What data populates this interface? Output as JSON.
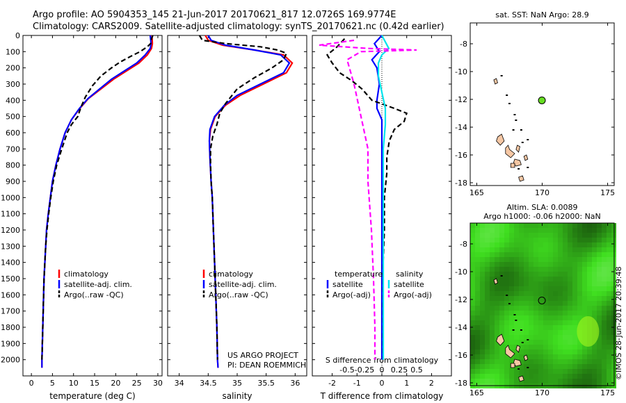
{
  "title": {
    "line1": "Argo profile: AO 5904353_145 21-Jun-2017 20170621_817 12.0726S 169.9774E",
    "line2": "Climatology: CARS2009. Satellite-adjusted climatology: synTS_20170621.nc (0.42d earlier)"
  },
  "chart_data": [
    {
      "type": "line",
      "name": "temperature-profile",
      "xlabel": "temperature (deg C)",
      "xlim": [
        -2,
        31
      ],
      "ylim": [
        2100,
        0
      ],
      "xticks": [
        0,
        5,
        10,
        15,
        20,
        25,
        30
      ],
      "yticks": [
        0,
        100,
        200,
        300,
        400,
        500,
        600,
        700,
        800,
        900,
        1000,
        1100,
        1200,
        1300,
        1400,
        1500,
        1600,
        1700,
        1800,
        1900,
        2000
      ],
      "legend": [
        "climatology",
        "satellite-adj. clim.",
        "Argo(..raw -QC)"
      ],
      "legend_placement": "lower-center",
      "series": [
        {
          "name": "climatology",
          "color": "#ff0000",
          "dash": "solid",
          "points": [
            [
              28.6,
              0
            ],
            [
              28.7,
              50
            ],
            [
              28.5,
              80
            ],
            [
              27.5,
              120
            ],
            [
              25.5,
              170
            ],
            [
              22.5,
              220
            ],
            [
              19.5,
              270
            ],
            [
              16.5,
              330
            ],
            [
              13.5,
              390
            ],
            [
              11.5,
              450
            ],
            [
              9.5,
              520
            ],
            [
              8.0,
              600
            ],
            [
              6.8,
              700
            ],
            [
              5.8,
              800
            ],
            [
              5.0,
              900
            ],
            [
              4.5,
              1000
            ],
            [
              4.0,
              1100
            ],
            [
              3.6,
              1200
            ],
            [
              3.4,
              1300
            ],
            [
              3.2,
              1400
            ],
            [
              3.0,
              1500
            ],
            [
              2.9,
              1600
            ],
            [
              2.8,
              1700
            ],
            [
              2.7,
              1800
            ],
            [
              2.6,
              1900
            ],
            [
              2.5,
              2000
            ],
            [
              2.5,
              2050
            ]
          ]
        },
        {
          "name": "satellite-adj. clim.",
          "color": "#0000ff",
          "dash": "solid",
          "points": [
            [
              28.2,
              0
            ],
            [
              28.4,
              50
            ],
            [
              28.2,
              80
            ],
            [
              27.0,
              120
            ],
            [
              25.0,
              170
            ],
            [
              22.0,
              220
            ],
            [
              19.0,
              270
            ],
            [
              16.2,
              330
            ],
            [
              13.4,
              390
            ],
            [
              11.4,
              450
            ],
            [
              9.5,
              520
            ],
            [
              8.0,
              600
            ],
            [
              6.8,
              700
            ],
            [
              5.8,
              800
            ],
            [
              5.0,
              900
            ],
            [
              4.5,
              1000
            ],
            [
              4.0,
              1100
            ],
            [
              3.6,
              1200
            ],
            [
              3.4,
              1300
            ],
            [
              3.2,
              1400
            ],
            [
              3.0,
              1500
            ],
            [
              2.9,
              1600
            ],
            [
              2.8,
              1700
            ],
            [
              2.7,
              1800
            ],
            [
              2.6,
              1900
            ],
            [
              2.5,
              2000
            ],
            [
              2.5,
              2050
            ]
          ]
        },
        {
          "name": "Argo(..raw -QC)",
          "color": "#000000",
          "dash": "dashed",
          "points": [
            [
              28.8,
              0
            ],
            [
              28.5,
              20
            ],
            [
              28.3,
              50
            ],
            [
              27.5,
              70
            ],
            [
              25.8,
              100
            ],
            [
              23.5,
              130
            ],
            [
              21.0,
              165
            ],
            [
              19.0,
              200
            ],
            [
              16.5,
              250
            ],
            [
              14.5,
              310
            ],
            [
              12.8,
              380
            ],
            [
              11.8,
              440
            ],
            [
              11.0,
              500
            ],
            [
              9.5,
              550
            ],
            [
              8.5,
              600
            ],
            [
              7.2,
              700
            ],
            [
              6.0,
              800
            ],
            [
              5.2,
              900
            ],
            [
              4.6,
              1000
            ],
            [
              4.1,
              1100
            ],
            [
              3.7,
              1200
            ],
            [
              3.4,
              1300
            ],
            [
              3.2,
              1400
            ],
            [
              3.0,
              1500
            ],
            [
              2.9,
              1600
            ],
            [
              2.8,
              1700
            ],
            [
              2.7,
              1800
            ],
            [
              2.6,
              1900
            ],
            [
              2.5,
              2000
            ]
          ]
        }
      ]
    },
    {
      "type": "line",
      "name": "salinity-profile",
      "xlabel": "salinity",
      "xlim": [
        33.8,
        36.2
      ],
      "ylim": [
        2100,
        0
      ],
      "xticks": [
        34,
        34.5,
        35,
        35.5,
        36
      ],
      "legend": [
        "climatology",
        "satellite-adj. clim.",
        "Argo(..raw -QC)"
      ],
      "legend_placement": "lower-center",
      "annotation": [
        "US ARGO PROJECT",
        "PI: DEAN ROEMMICH"
      ],
      "series": [
        {
          "name": "climatology",
          "color": "#ff0000",
          "dash": "solid",
          "points": [
            [
              34.45,
              0
            ],
            [
              34.5,
              30
            ],
            [
              34.75,
              60
            ],
            [
              35.3,
              90
            ],
            [
              35.8,
              120
            ],
            [
              35.95,
              170
            ],
            [
              35.85,
              230
            ],
            [
              35.45,
              300
            ],
            [
              35.05,
              370
            ],
            [
              34.8,
              430
            ],
            [
              34.62,
              500
            ],
            [
              34.54,
              580
            ],
            [
              34.52,
              650
            ],
            [
              34.53,
              750
            ],
            [
              34.55,
              900
            ],
            [
              34.57,
              1000
            ],
            [
              34.59,
              1200
            ],
            [
              34.61,
              1400
            ],
            [
              34.63,
              1600
            ],
            [
              34.65,
              1800
            ],
            [
              34.66,
              2000
            ],
            [
              34.67,
              2050
            ]
          ]
        },
        {
          "name": "satellite-adj. clim.",
          "color": "#0000ff",
          "dash": "solid",
          "points": [
            [
              34.5,
              0
            ],
            [
              34.55,
              30
            ],
            [
              34.8,
              60
            ],
            [
              35.3,
              90
            ],
            [
              35.75,
              120
            ],
            [
              35.9,
              170
            ],
            [
              35.8,
              230
            ],
            [
              35.4,
              300
            ],
            [
              35.0,
              370
            ],
            [
              34.78,
              430
            ],
            [
              34.61,
              500
            ],
            [
              34.53,
              580
            ],
            [
              34.52,
              650
            ],
            [
              34.53,
              750
            ],
            [
              34.55,
              900
            ],
            [
              34.57,
              1000
            ],
            [
              34.59,
              1200
            ],
            [
              34.61,
              1400
            ],
            [
              34.63,
              1600
            ],
            [
              34.65,
              1800
            ],
            [
              34.66,
              2000
            ],
            [
              34.67,
              2050
            ]
          ]
        },
        {
          "name": "Argo(..raw -QC)",
          "color": "#000000",
          "dash": "dashed",
          "points": [
            [
              34.35,
              0
            ],
            [
              34.4,
              30
            ],
            [
              34.8,
              50
            ],
            [
              35.4,
              70
            ],
            [
              35.7,
              90
            ],
            [
              35.85,
              110
            ],
            [
              35.8,
              150
            ],
            [
              35.6,
              200
            ],
            [
              35.3,
              260
            ],
            [
              35.0,
              330
            ],
            [
              34.8,
              420
            ],
            [
              34.7,
              480
            ],
            [
              34.65,
              550
            ],
            [
              34.58,
              620
            ],
            [
              34.54,
              700
            ],
            [
              34.54,
              800
            ],
            [
              34.55,
              900
            ],
            [
              34.57,
              1000
            ],
            [
              34.59,
              1200
            ],
            [
              34.61,
              1400
            ],
            [
              34.63,
              1600
            ],
            [
              34.65,
              1800
            ],
            [
              34.66,
              2000
            ]
          ]
        }
      ]
    },
    {
      "type": "line",
      "name": "difference-profile",
      "xlabel": "T difference from climatology",
      "xlabel2": "S difference from climatology",
      "xlim": [
        -2.8,
        2.8
      ],
      "ylim": [
        2100,
        0
      ],
      "xticks": [
        -2,
        -1,
        0,
        1,
        2
      ],
      "xticklabels_T": [
        "-2",
        "-1",
        "0",
        "1",
        "2"
      ],
      "xticks_S": [
        -0.5,
        -0.25,
        0,
        0.25,
        0.5
      ],
      "xticklabels_S": [
        "-0.5",
        "-0.25",
        "0",
        "0.25",
        "0.5"
      ],
      "legend_groups": [
        {
          "title": "temperature",
          "items": [
            "satellite",
            "Argo(-adj)"
          ]
        },
        {
          "title": "salinity",
          "items": [
            "satellite",
            "Argo(-adj)"
          ]
        }
      ],
      "legend_placement": "lower-center",
      "series": [
        {
          "name": "T satellite",
          "color": "#0000ff",
          "dash": "solid",
          "points": [
            [
              0,
              0
            ],
            [
              -0.3,
              50
            ],
            [
              -0.1,
              100
            ],
            [
              -0.4,
              150
            ],
            [
              -0.2,
              200
            ],
            [
              -0.1,
              300
            ],
            [
              -0.2,
              400
            ],
            [
              -0.2,
              450
            ],
            [
              0,
              520
            ],
            [
              0,
              600
            ],
            [
              0,
              700
            ],
            [
              0,
              800
            ],
            [
              0,
              1000
            ],
            [
              0,
              1500
            ],
            [
              0,
              2000
            ]
          ]
        },
        {
          "name": "T Argo(-adj)",
          "color": "#000000",
          "dash": "dashed",
          "points": [
            [
              -1.5,
              20
            ],
            [
              -1.8,
              70
            ],
            [
              -2.2,
              120
            ],
            [
              -2.0,
              170
            ],
            [
              -1.7,
              230
            ],
            [
              -1.2,
              280
            ],
            [
              -0.8,
              330
            ],
            [
              -0.4,
              400
            ],
            [
              0.5,
              450
            ],
            [
              1.0,
              480
            ],
            [
              0.9,
              530
            ],
            [
              0.5,
              580
            ],
            [
              0.3,
              650
            ],
            [
              0.2,
              750
            ],
            [
              0.2,
              850
            ],
            [
              0.1,
              1000
            ],
            [
              0.1,
              1200
            ],
            [
              0.05,
              1400
            ],
            [
              0.05,
              1600
            ],
            [
              0.05,
              1800
            ],
            [
              0.05,
              2000
            ]
          ]
        },
        {
          "name": "S satellite",
          "color": "#00e5ee",
          "dash": "solid",
          "points": [
            [
              0,
              0
            ],
            [
              0.05,
              40
            ],
            [
              0.1,
              80
            ],
            [
              0.0,
              120
            ],
            [
              -0.05,
              170
            ],
            [
              -0.05,
              250
            ],
            [
              0.0,
              350
            ],
            [
              0.05,
              450
            ],
            [
              0.05,
              550
            ],
            [
              0.02,
              700
            ],
            [
              0.02,
              900
            ],
            [
              0.02,
              1200
            ],
            [
              0.02,
              1600
            ],
            [
              0.02,
              2000
            ]
          ]
        },
        {
          "name": "S Argo(-adj)",
          "color": "#ff00ff",
          "dash": "dashed",
          "points": [
            [
              -0.4,
              30
            ],
            [
              -0.9,
              60
            ],
            [
              -0.2,
              80
            ],
            [
              0.5,
              90
            ],
            [
              -0.3,
              100
            ],
            [
              -0.5,
              150
            ],
            [
              -0.4,
              300
            ],
            [
              -0.3,
              500
            ],
            [
              -0.2,
              700
            ],
            [
              -0.2,
              900
            ],
            [
              -0.15,
              1200
            ],
            [
              -0.12,
              1500
            ],
            [
              -0.1,
              1800
            ],
            [
              -0.1,
              2000
            ]
          ]
        }
      ]
    },
    {
      "type": "scatter",
      "name": "sst-map",
      "title": "sat. SST: NaN Argo: 28.9",
      "xlim": [
        164.5,
        175.5
      ],
      "ylim": [
        -18.2,
        -6.5
      ],
      "xticks": [
        165,
        170,
        175
      ],
      "yticks": [
        -8,
        -10,
        -12,
        -14,
        -16,
        -18
      ],
      "profile_location": {
        "lon": 169.9774,
        "lat": -12.0726,
        "color": "#66dd22"
      }
    },
    {
      "type": "heatmap",
      "name": "sla-map",
      "title": "Altim. SLA: 0.0089",
      "title2": "Argo h1000: -0.06 h2000: NaN",
      "xlim": [
        164.5,
        175.5
      ],
      "ylim": [
        -18.2,
        -6.5
      ],
      "xticks": [
        165,
        170,
        175
      ],
      "yticks": [
        -8,
        -10,
        -12,
        -14,
        -16,
        -18
      ],
      "base_color": "#22c922",
      "profile_location": {
        "lon": 169.9774,
        "lat": -12.0726
      }
    }
  ],
  "side_stamp": "©IMOS 28-Jun-2017 20:39:48"
}
